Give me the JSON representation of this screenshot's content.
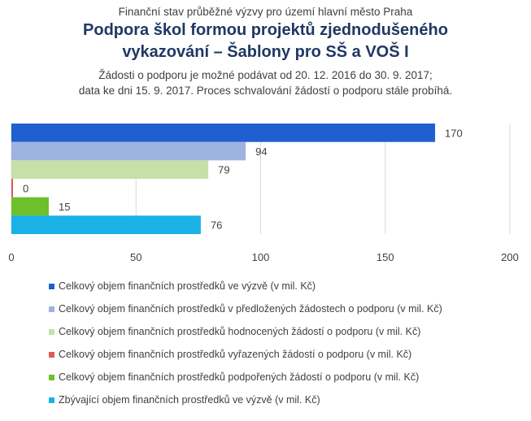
{
  "header": {
    "pretitle": "Finanční stav průběžné výzvy pro území hlavní město Praha",
    "title_line1": "Podpora škol formou projektů zjednodušeného",
    "title_line2": "vykazování – Šablony pro SŠ a VOŠ I",
    "subtitle_line1": "Žádosti o podporu je možné podávat od 20. 12. 2016 do 30. 9. 2017;",
    "subtitle_line2": "data ke dni 15. 9. 2017. Proces schvalování žádostí o podporu stále probíhá."
  },
  "chart_data": {
    "type": "bar",
    "orientation": "horizontal",
    "xlim": [
      0,
      200
    ],
    "x_ticks": [
      "0",
      "50",
      "100",
      "150",
      "200"
    ],
    "grid": true,
    "legend_position": "bottom",
    "series": [
      {
        "name": "Celkový objem finančních prostředků ve výzvě (v mil. Kč)",
        "value": 170,
        "label": "170",
        "color": "#1f5fcf"
      },
      {
        "name": "Celkový objem finančních prostředků v předložených žádostech o podporu (v mil. Kč)",
        "value": 94,
        "label": "94",
        "color": "#9fb3e0"
      },
      {
        "name": "Celkový objem finančních prostředků hodnocených žádostí o podporu (v mil. Kč)",
        "value": 79,
        "label": "79",
        "color": "#c6e0a8"
      },
      {
        "name": "Celkový objem finančních prostředků vyřazených žádostí o podporu (v mil. Kč)",
        "value": 0,
        "label": "0",
        "color": "#e05a5a"
      },
      {
        "name": "Celkový objem finančních prostředků podpořených žádostí o podporu (v mil. Kč)",
        "value": 15,
        "label": "15",
        "color": "#6cc02a"
      },
      {
        "name": "Zbývající objem finančních prostředků ve výzvě (v mil. Kč)",
        "value": 76,
        "label": "76",
        "color": "#1ab2e6"
      }
    ]
  }
}
